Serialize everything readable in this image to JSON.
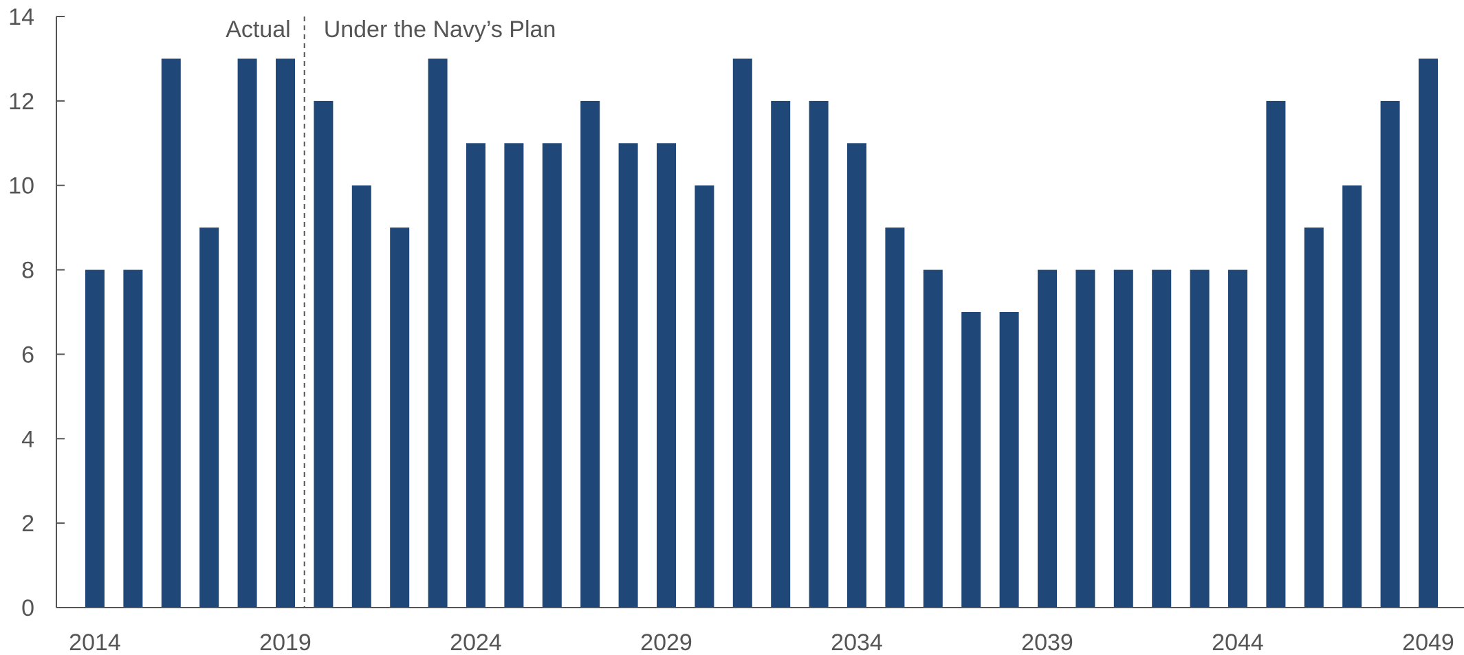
{
  "chart_data": {
    "type": "bar",
    "title": "",
    "xlabel": "",
    "ylabel": "",
    "x": [
      2014,
      2015,
      2016,
      2017,
      2018,
      2019,
      2020,
      2021,
      2022,
      2023,
      2024,
      2025,
      2026,
      2027,
      2028,
      2029,
      2030,
      2031,
      2032,
      2033,
      2034,
      2035,
      2036,
      2037,
      2038,
      2039,
      2040,
      2041,
      2042,
      2043,
      2044,
      2045,
      2046,
      2047,
      2048,
      2049
    ],
    "values": [
      8,
      8,
      13,
      9,
      13,
      13,
      12,
      10,
      9,
      13,
      11,
      11,
      11,
      12,
      11,
      11,
      10,
      13,
      12,
      12,
      11,
      9,
      8,
      7,
      7,
      8,
      8,
      8,
      8,
      8,
      8,
      12,
      9,
      10,
      12,
      13
    ],
    "ylim": [
      0,
      14
    ],
    "yticks": [
      0,
      2,
      4,
      6,
      8,
      10,
      12,
      14
    ],
    "xticks": [
      2014,
      2019,
      2024,
      2029,
      2034,
      2039,
      2044,
      2049
    ],
    "grid": false,
    "bar_color": "#1f4778",
    "annotations": {
      "actual_label": "Actual",
      "plan_label": "Under the Navy’s Plan",
      "divider_between": [
        2019,
        2020
      ]
    }
  }
}
